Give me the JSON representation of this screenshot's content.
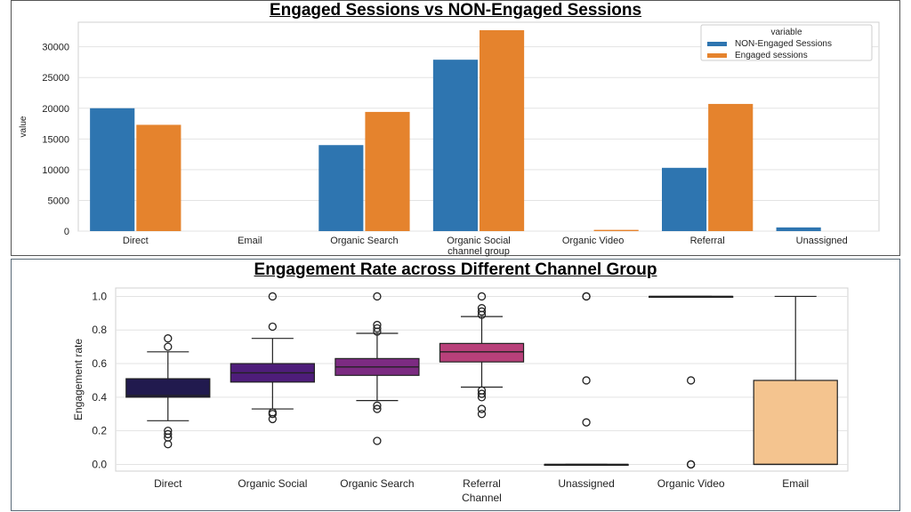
{
  "chart_data": [
    {
      "type": "bar",
      "title": "Engaged Sessions vs NON-Engaged Sessions",
      "xlabel": "channel group",
      "ylabel": "value",
      "ylim": [
        0,
        34000
      ],
      "yticks": [
        0,
        5000,
        10000,
        15000,
        20000,
        25000,
        30000
      ],
      "categories": [
        "Direct",
        "Email",
        "Organic Search",
        "Organic Social",
        "Organic Video",
        "Referral",
        "Unassigned"
      ],
      "legend": {
        "title": "variable",
        "position": "top-right"
      },
      "grid": true,
      "series": [
        {
          "name": "NON-Engaged Sessions",
          "color": "#2e75b0",
          "values": [
            20000,
            0,
            14000,
            27900,
            0,
            10300,
            600
          ]
        },
        {
          "name": "Engaged sessions",
          "color": "#e5832d",
          "values": [
            17300,
            0,
            19400,
            32700,
            200,
            20700,
            0
          ]
        }
      ]
    },
    {
      "type": "box",
      "title": "Engagement Rate across Different Channel Group",
      "xlabel": "Channel",
      "ylabel": "Engagement rate",
      "ylim": [
        -0.04,
        1.05
      ],
      "yticks": [
        "0.0",
        "0.2",
        "0.4",
        "0.6",
        "0.8",
        "1.0"
      ],
      "grid": true,
      "categories": [
        "Direct",
        "Organic Social",
        "Organic Search",
        "Referral",
        "Unassigned",
        "Organic Video",
        "Email"
      ],
      "boxes": [
        {
          "q1": 0.4,
          "median": 0.41,
          "q3": 0.51,
          "whisker_low": 0.26,
          "whisker_high": 0.67,
          "outliers": [
            0.75,
            0.7,
            0.2,
            0.18,
            0.16,
            0.12
          ],
          "color": "#211a4e"
        },
        {
          "q1": 0.49,
          "median": 0.545,
          "q3": 0.6,
          "whisker_low": 0.33,
          "whisker_high": 0.75,
          "outliers": [
            1.0,
            0.82,
            0.31,
            0.3,
            0.27
          ],
          "color": "#4e1d7a"
        },
        {
          "q1": 0.53,
          "median": 0.58,
          "q3": 0.63,
          "whisker_low": 0.38,
          "whisker_high": 0.78,
          "outliers": [
            1.0,
            0.83,
            0.81,
            0.79,
            0.35,
            0.33,
            0.14
          ],
          "color": "#7c2b82"
        },
        {
          "q1": 0.61,
          "median": 0.67,
          "q3": 0.72,
          "whisker_low": 0.46,
          "whisker_high": 0.88,
          "outliers": [
            1.0,
            0.93,
            0.91,
            0.89,
            0.44,
            0.42,
            0.4,
            0.33,
            0.3
          ],
          "color": "#b8407a"
        },
        {
          "q1": 0.0,
          "median": 0.0,
          "q3": 0.0,
          "whisker_low": 0.0,
          "whisker_high": 0.0,
          "outliers": [
            1.0,
            1.0,
            0.5,
            0.25
          ],
          "color": "#e8605e"
        },
        {
          "q1": 1.0,
          "median": 1.0,
          "q3": 1.0,
          "whisker_low": 1.0,
          "whisker_high": 1.0,
          "outliers": [
            0.5,
            0.0,
            0.0
          ],
          "color": "#f28c67"
        },
        {
          "q1": 0.0,
          "median": 0.0,
          "q3": 0.5,
          "whisker_low": 0.0,
          "whisker_high": 1.0,
          "outliers": [],
          "color": "#f4c48f"
        }
      ]
    }
  ]
}
